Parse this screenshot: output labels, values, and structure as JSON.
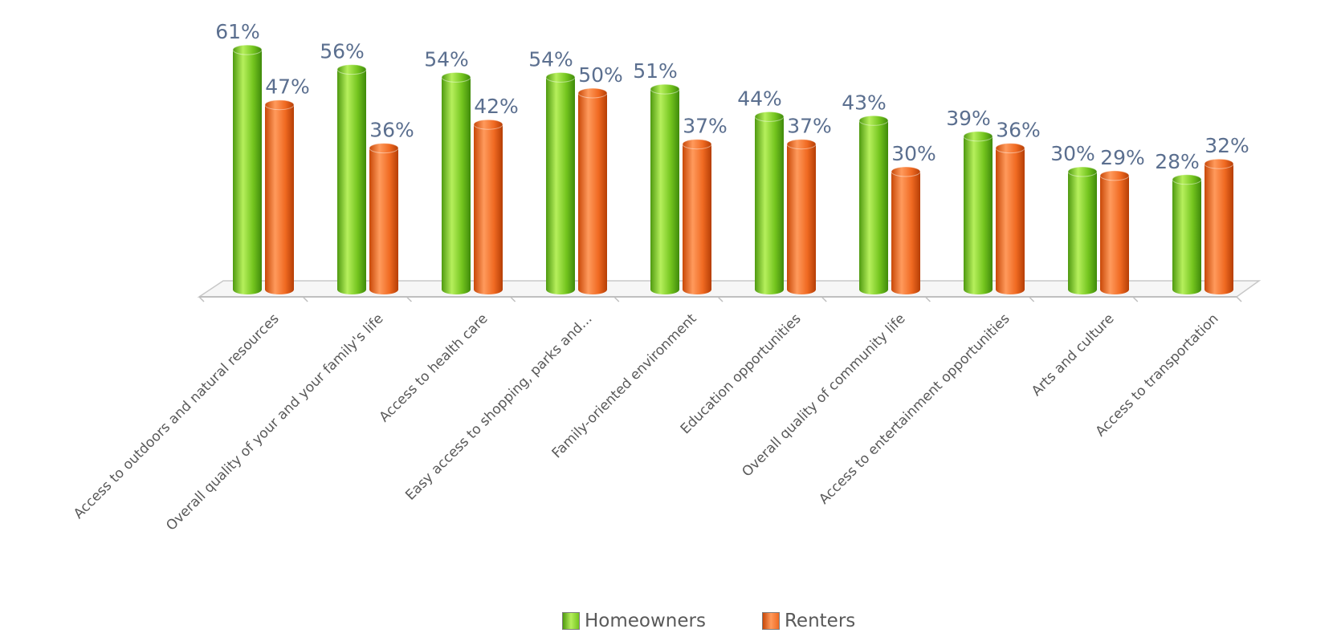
{
  "chart_data": {
    "type": "bar",
    "title": "",
    "xlabel": "",
    "ylabel": "",
    "ylim": [
      0,
      70
    ],
    "grid": false,
    "legend_position": "bottom",
    "categories": [
      "Access to outdoors and natural resources",
      "Overall quality of your and your family's life",
      "Access to health care",
      "Easy access to shopping, parks and...",
      "Family-oriented environment",
      "Education opportunities",
      "Overall quality of community life",
      "Access to entertainment opportunities",
      "Arts and culture",
      "Access to transportation"
    ],
    "series": [
      {
        "name": "Homeowners",
        "color": "#6cc11f",
        "values": [
          61,
          56,
          54,
          54,
          51,
          44,
          43,
          39,
          30,
          28
        ],
        "labels": [
          "61%",
          "56%",
          "54%",
          "54%",
          "51%",
          "44%",
          "43%",
          "39%",
          "30%",
          "28%"
        ]
      },
      {
        "name": "Renters",
        "color": "#f0661e",
        "values": [
          47,
          36,
          42,
          50,
          37,
          37,
          30,
          36,
          29,
          32
        ],
        "labels": [
          "47%",
          "36%",
          "42%",
          "50%",
          "37%",
          "37%",
          "30%",
          "36%",
          "29%",
          "32%"
        ]
      }
    ]
  }
}
